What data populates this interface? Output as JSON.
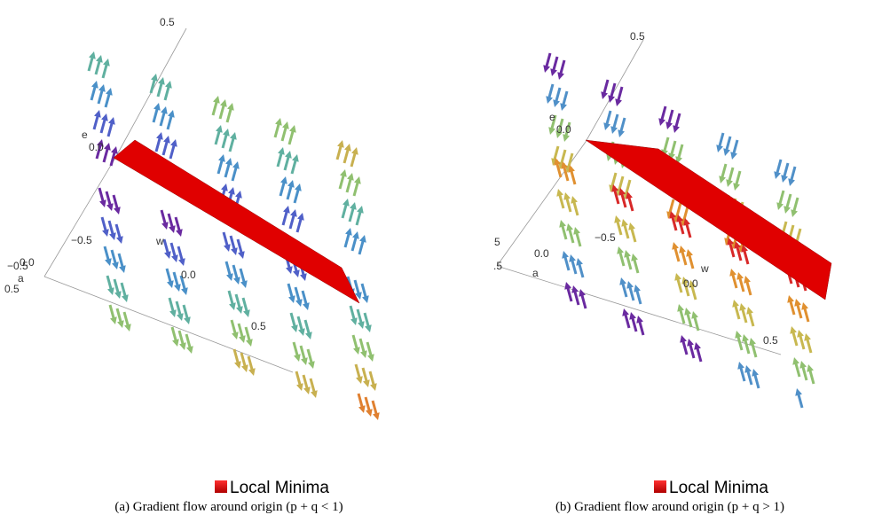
{
  "panels": [
    {
      "axis_labels": {
        "e": "e",
        "w": "w",
        "a": "a"
      },
      "tick_labels": [
        "0.5",
        "0.0",
        "−0.5",
        "−0.5",
        "0.0",
        "0.5",
        "0.0",
        "0.5"
      ],
      "legend": "Local Minima",
      "caption": "(a) Gradient flow around origin (p + q < 1)"
    },
    {
      "axis_labels": {
        "e": "e",
        "w": "w",
        "a": "a"
      },
      "tick_labels": [
        "0.5",
        "0.0",
        "5",
        ".5",
        "0.0",
        "−0.5",
        "0.0",
        "0.5"
      ],
      "legend": "Local Minima",
      "caption": "(b) Gradient flow around origin (p + q > 1)"
    }
  ]
}
